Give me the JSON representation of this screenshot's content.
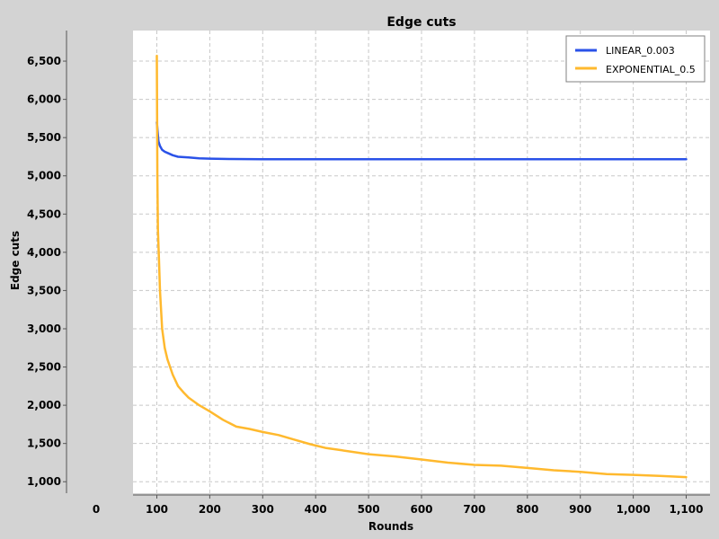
{
  "chart_data": {
    "type": "line",
    "title": "Edge cuts",
    "xlabel": "Rounds",
    "ylabel": "Edge cuts",
    "xlim": [
      55,
      1145
    ],
    "ylim": [
      850,
      6900
    ],
    "grid": true,
    "legend_position": "top-right",
    "x_ticks": [
      "0",
      "100",
      "200",
      "300",
      "400",
      "500",
      "600",
      "700",
      "800",
      "900",
      "1,000",
      "1,100"
    ],
    "y_ticks": [
      "1,000",
      "1,500",
      "2,000",
      "2,500",
      "3,000",
      "3,500",
      "4,000",
      "4,500",
      "5,000",
      "5,500",
      "6,000",
      "6,500"
    ],
    "series": [
      {
        "name": "LINEAR_0.003",
        "color": "#2a52e8",
        "x": [
          100,
          103,
          106,
          110,
          115,
          120,
          130,
          140,
          160,
          180,
          200,
          240,
          300,
          400,
          500,
          600,
          700,
          800,
          900,
          1000,
          1100
        ],
        "y": [
          5700,
          5450,
          5390,
          5340,
          5315,
          5300,
          5270,
          5250,
          5240,
          5230,
          5225,
          5220,
          5218,
          5218,
          5218,
          5218,
          5218,
          5218,
          5218,
          5218,
          5218
        ]
      },
      {
        "name": "EXPONENTIAL_0.5",
        "color": "#ffb92e",
        "x": [
          100,
          101,
          102,
          104,
          106,
          110,
          115,
          120,
          130,
          140,
          150,
          160,
          180,
          200,
          225,
          250,
          275,
          300,
          330,
          360,
          390,
          420,
          450,
          500,
          550,
          600,
          650,
          700,
          750,
          800,
          850,
          900,
          950,
          1000,
          1050,
          1100
        ],
        "y": [
          6570,
          5000,
          4300,
          3900,
          3500,
          3000,
          2750,
          2600,
          2400,
          2250,
          2170,
          2100,
          2000,
          1920,
          1810,
          1720,
          1690,
          1650,
          1610,
          1550,
          1490,
          1440,
          1410,
          1360,
          1330,
          1290,
          1250,
          1220,
          1210,
          1180,
          1150,
          1130,
          1100,
          1090,
          1075,
          1060
        ]
      }
    ]
  }
}
